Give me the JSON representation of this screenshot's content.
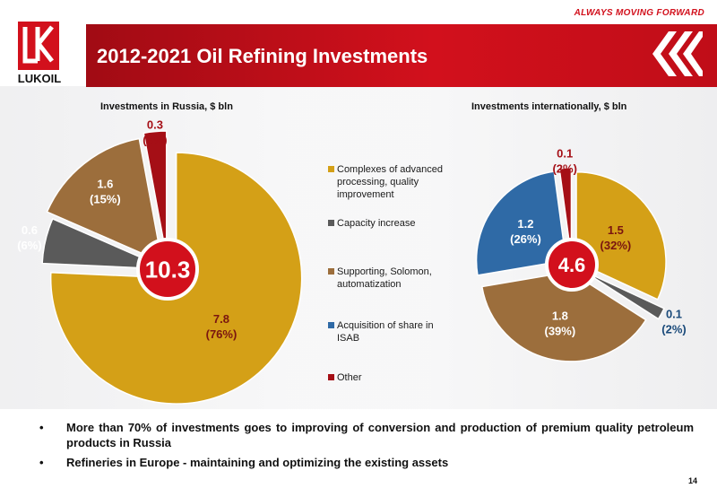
{
  "header": {
    "tagline": "ALWAYS MOVING FORWARD",
    "title": "2012-2021 Oil Refining Investments",
    "brand": "LUKOIL"
  },
  "colors": {
    "brand_red": "#d2101c",
    "gold": "#d4a017",
    "gray": "#5a5a5a",
    "brown": "#9c6e3c",
    "blue": "#2f6aa6",
    "dark_red": "#a50f16"
  },
  "chart_data": [
    {
      "type": "pie",
      "title": "Investments in Russia, $ bln",
      "total_label": "10.3",
      "slices": [
        {
          "category": "Complexes of advanced processing, quality improvement",
          "value": 7.8,
          "pct_label": "(76%)",
          "value_label": "7.8"
        },
        {
          "category": "Capacity increase",
          "value": 0.6,
          "pct_label": "(6%)",
          "value_label": "0.6"
        },
        {
          "category": "Supporting, Solomon, automatization",
          "value": 1.6,
          "pct_label": "(15%)",
          "value_label": "1.6"
        },
        {
          "category": "Other",
          "value": 0.3,
          "pct_label": "(3%)",
          "value_label": "0.3"
        }
      ]
    },
    {
      "type": "pie",
      "title": "Investments internationally, $ bln",
      "total_label": "4.6",
      "slices": [
        {
          "category": "Complexes of advanced processing, quality improvement",
          "value": 1.5,
          "pct_label": "(32%)",
          "value_label": "1.5"
        },
        {
          "category": "Capacity increase",
          "value": 0.1,
          "pct_label": "(2%)",
          "value_label": "0.1"
        },
        {
          "category": "Supporting, Solomon, automatization",
          "value": 1.8,
          "pct_label": "(39%)",
          "value_label": "1.8"
        },
        {
          "category": "Acquisition of share in ISAB",
          "value": 1.2,
          "pct_label": "(26%)",
          "value_label": "1.2"
        },
        {
          "category": "Other",
          "value": 0.1,
          "pct_label": "(2%)",
          "value_label": "0.1"
        }
      ]
    }
  ],
  "legend": [
    {
      "label": "Complexes of advanced processing, quality improvement",
      "color": "#d4a017"
    },
    {
      "label": "Capacity increase",
      "color": "#5a5a5a"
    },
    {
      "label": "Supporting, Solomon, automatization",
      "color": "#9c6e3c"
    },
    {
      "label": "Acquisition of share in ISAB",
      "color": "#2f6aa6"
    },
    {
      "label": "Other",
      "color": "#a50f16"
    }
  ],
  "bullets": [
    "More than 70% of investments goes to improving of conversion and production of premium quality petroleum products in Russia",
    "Refineries in Europe - maintaining and optimizing the existing assets"
  ],
  "page_number": "14"
}
